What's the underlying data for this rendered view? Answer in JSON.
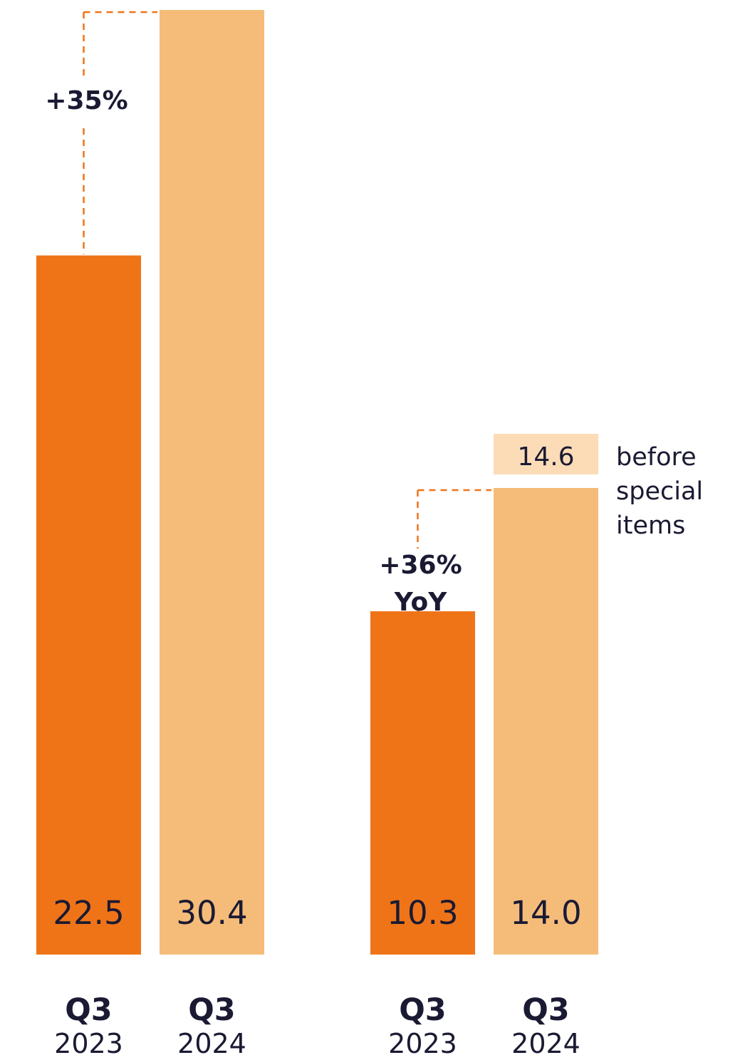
{
  "colors": {
    "q3_2023": "#ef7418",
    "q3_2024": "#f5bc79",
    "q3_2024_special": "#fbdcb7",
    "connector": "#ef7418",
    "text": "#1a1a33"
  },
  "chart_data": [
    {
      "type": "bar",
      "categories": [
        "Q3 2023",
        "Q3 2024"
      ],
      "values": [
        22.5,
        30.4
      ],
      "value_labels": [
        "22.5",
        "30.4"
      ],
      "tick_labels": [
        {
          "quarter": "Q3",
          "year": "2023"
        },
        {
          "quarter": "Q3",
          "year": "2024"
        }
      ],
      "change_label": [
        "+35%"
      ]
    },
    {
      "type": "bar",
      "categories": [
        "Q3 2023",
        "Q3 2024"
      ],
      "values": [
        10.3,
        14.0
      ],
      "value_labels": [
        "10.3",
        "14.0"
      ],
      "extra_value": 14.6,
      "extra_label": "14.6",
      "extra_note": [
        "before",
        "special",
        "items"
      ],
      "tick_labels": [
        {
          "quarter": "Q3",
          "year": "2023"
        },
        {
          "quarter": "Q3",
          "year": "2024"
        }
      ],
      "change_label": [
        "+36%",
        "YoY"
      ]
    }
  ]
}
